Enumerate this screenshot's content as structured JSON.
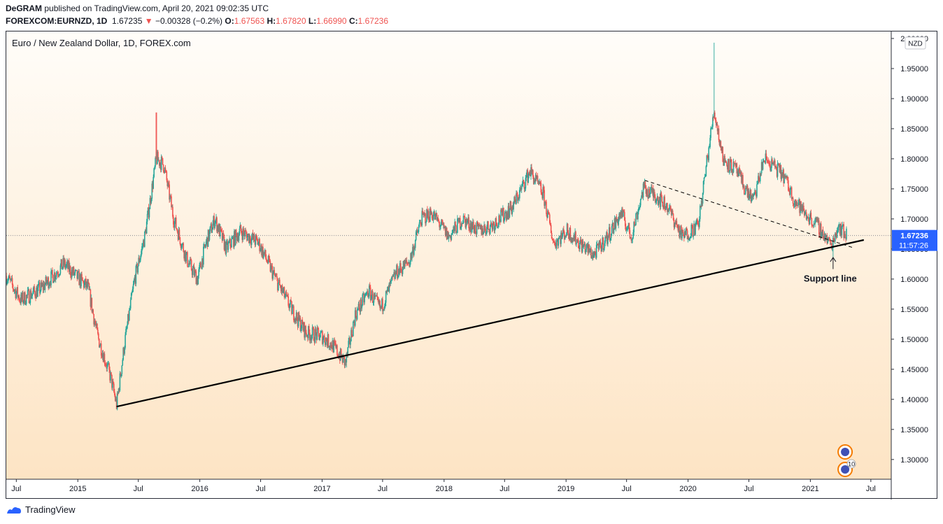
{
  "header": {
    "publisher": "DeGRAM",
    "published_text": "published on TradingView.com, April 20, 2021 09:02:35 UTC",
    "symbol": "FOREXCOM:EURNZD, 1D",
    "last": "1.67235",
    "change_arrow": "▼",
    "change": "−0.00328 (−0.2%)",
    "o_label": "O:",
    "o_value": "1.67563",
    "h_label": "H:",
    "h_value": "1.67820",
    "l_label": "L:",
    "l_value": "1.66990",
    "c_label": "C:",
    "c_value": "1.67236"
  },
  "footer": {
    "brand": "TradingView"
  },
  "colors": {
    "up": "#26a69a",
    "down": "#ef5350",
    "accent": "#2962ff",
    "bg_top": "#fffdf9",
    "bg_bottom": "#fde4c4"
  },
  "chart_data": {
    "type": "candlestick",
    "title": "Euro / New Zealand Dollar, 1D, FOREX.com",
    "currency_label": "NZD",
    "ylim": [
      1.28,
      2.0
    ],
    "xlim": [
      "2014-06-01",
      "2021-08-31"
    ],
    "y_ticks": [
      2.0,
      1.95,
      1.9,
      1.85,
      1.8,
      1.75,
      1.7,
      1.65,
      1.6,
      1.55,
      1.5,
      1.45,
      1.4,
      1.35,
      1.3
    ],
    "y_tick_labels": [
      "2.00000",
      "1.95000",
      "1.90000",
      "1.85000",
      "1.80000",
      "1.75000",
      "1.70000",
      "1.65000",
      "1.60000",
      "1.55000",
      "1.50000",
      "1.45000",
      "1.40000",
      "1.35000",
      "1.30000"
    ],
    "x_ticks": [
      {
        "date": "2014-07-01",
        "label": "Jul"
      },
      {
        "date": "2015-01-01",
        "label": "2015"
      },
      {
        "date": "2015-07-01",
        "label": "Jul"
      },
      {
        "date": "2016-01-01",
        "label": "2016"
      },
      {
        "date": "2016-07-01",
        "label": "Jul"
      },
      {
        "date": "2017-01-01",
        "label": "2017"
      },
      {
        "date": "2017-07-01",
        "label": "Jul"
      },
      {
        "date": "2018-01-01",
        "label": "2018"
      },
      {
        "date": "2018-07-01",
        "label": "Jul"
      },
      {
        "date": "2019-01-01",
        "label": "2019"
      },
      {
        "date": "2019-07-01",
        "label": "Jul"
      },
      {
        "date": "2020-01-01",
        "label": "2020"
      },
      {
        "date": "2020-07-01",
        "label": "Jul"
      },
      {
        "date": "2021-01-01",
        "label": "2021"
      },
      {
        "date": "2021-07-01",
        "label": "Jul"
      }
    ],
    "price_path": [
      {
        "date": "2014-06-01",
        "close": 1.605
      },
      {
        "date": "2014-07-15",
        "close": 1.565
      },
      {
        "date": "2014-09-15",
        "close": 1.585
      },
      {
        "date": "2014-11-20",
        "close": 1.625
      },
      {
        "date": "2015-02-01",
        "close": 1.585
      },
      {
        "date": "2015-03-01",
        "close": 1.505
      },
      {
        "date": "2015-04-10",
        "close": 1.435
      },
      {
        "date": "2015-04-27",
        "close": 1.39
      },
      {
        "date": "2015-05-20",
        "close": 1.49
      },
      {
        "date": "2015-06-20",
        "close": 1.6
      },
      {
        "date": "2015-07-20",
        "close": 1.67
      },
      {
        "date": "2015-08-24",
        "close": 1.8
      },
      {
        "date": "2015-09-15",
        "close": 1.79
      },
      {
        "date": "2015-10-15",
        "close": 1.7
      },
      {
        "date": "2015-11-25",
        "close": 1.63
      },
      {
        "date": "2015-12-25",
        "close": 1.6
      },
      {
        "date": "2016-01-20",
        "close": 1.66
      },
      {
        "date": "2016-02-15",
        "close": 1.7
      },
      {
        "date": "2016-03-20",
        "close": 1.65
      },
      {
        "date": "2016-05-01",
        "close": 1.68
      },
      {
        "date": "2016-06-25",
        "close": 1.66
      },
      {
        "date": "2016-08-15",
        "close": 1.6
      },
      {
        "date": "2016-10-01",
        "close": 1.55
      },
      {
        "date": "2016-11-15",
        "close": 1.51
      },
      {
        "date": "2017-01-01",
        "close": 1.505
      },
      {
        "date": "2017-02-01",
        "close": 1.49
      },
      {
        "date": "2017-03-12",
        "close": 1.46
      },
      {
        "date": "2017-04-10",
        "close": 1.54
      },
      {
        "date": "2017-05-20",
        "close": 1.58
      },
      {
        "date": "2017-06-25",
        "close": 1.55
      },
      {
        "date": "2017-08-10",
        "close": 1.61
      },
      {
        "date": "2017-09-20",
        "close": 1.63
      },
      {
        "date": "2017-10-25",
        "close": 1.7
      },
      {
        "date": "2017-11-25",
        "close": 1.71
      },
      {
        "date": "2018-01-15",
        "close": 1.67
      },
      {
        "date": "2018-02-25",
        "close": 1.7
      },
      {
        "date": "2018-04-15",
        "close": 1.68
      },
      {
        "date": "2018-05-25",
        "close": 1.69
      },
      {
        "date": "2018-07-25",
        "close": 1.72
      },
      {
        "date": "2018-09-15",
        "close": 1.78
      },
      {
        "date": "2018-10-25",
        "close": 1.74
      },
      {
        "date": "2018-11-25",
        "close": 1.66
      },
      {
        "date": "2019-01-05",
        "close": 1.68
      },
      {
        "date": "2019-02-10",
        "close": 1.66
      },
      {
        "date": "2019-03-25",
        "close": 1.64
      },
      {
        "date": "2019-05-05",
        "close": 1.67
      },
      {
        "date": "2019-06-15",
        "close": 1.71
      },
      {
        "date": "2019-07-15",
        "close": 1.67
      },
      {
        "date": "2019-08-20",
        "close": 1.75
      },
      {
        "date": "2019-09-25",
        "close": 1.74
      },
      {
        "date": "2019-11-01",
        "close": 1.72
      },
      {
        "date": "2019-12-15",
        "close": 1.67
      },
      {
        "date": "2020-02-01",
        "close": 1.69
      },
      {
        "date": "2020-02-25",
        "close": 1.79
      },
      {
        "date": "2020-03-19",
        "close": 1.88
      },
      {
        "date": "2020-04-15",
        "close": 1.8
      },
      {
        "date": "2020-05-25",
        "close": 1.78
      },
      {
        "date": "2020-06-20",
        "close": 1.75
      },
      {
        "date": "2020-07-15",
        "close": 1.73
      },
      {
        "date": "2020-08-15",
        "close": 1.8
      },
      {
        "date": "2020-09-10",
        "close": 1.79
      },
      {
        "date": "2020-10-15",
        "close": 1.77
      },
      {
        "date": "2020-11-15",
        "close": 1.73
      },
      {
        "date": "2020-12-15",
        "close": 1.71
      },
      {
        "date": "2021-01-20",
        "close": 1.69
      },
      {
        "date": "2021-02-15",
        "close": 1.67
      },
      {
        "date": "2021-03-05",
        "close": 1.655
      },
      {
        "date": "2021-03-25",
        "close": 1.69
      },
      {
        "date": "2021-04-20",
        "close": 1.672
      }
    ],
    "price_extremes": [
      {
        "date": "2015-04-27",
        "low": 1.387
      },
      {
        "date": "2015-08-24",
        "high": 1.877
      },
      {
        "date": "2017-03-15",
        "low": 1.453
      },
      {
        "date": "2020-03-19",
        "high": 1.993
      },
      {
        "date": "2021-03-10",
        "low": 1.633
      }
    ],
    "last_price": 1.67236,
    "last_price_label": "1.67236",
    "countdown_label": "11:57:26",
    "support_line": {
      "start": {
        "date": "2015-04-27",
        "price": 1.388
      },
      "end": {
        "date": "2021-06-10",
        "price": 1.665
      }
    },
    "resistance_line": {
      "start": {
        "date": "2019-08-25",
        "price": 1.764
      },
      "end": {
        "date": "2021-05-10",
        "price": 1.652
      }
    },
    "annotation": {
      "text": "Support line",
      "date": "2021-03-10",
      "price": 1.605,
      "arrow_to_price": 1.637
    },
    "event_badge": "10"
  }
}
